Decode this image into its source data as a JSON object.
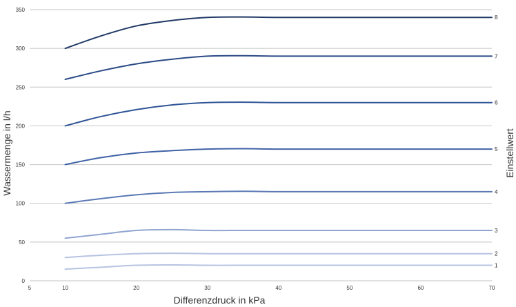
{
  "chart_data": {
    "type": "line",
    "title": "",
    "xlabel": "Differenzdruck in kPa",
    "ylabel": "Wassermenge in l/h",
    "y2label": "Einstellwert",
    "xlim": [
      5,
      70
    ],
    "ylim": [
      0,
      350
    ],
    "xticks": [
      5,
      10,
      20,
      30,
      40,
      50,
      60,
      70
    ],
    "yticks": [
      0,
      50,
      100,
      150,
      200,
      250,
      300,
      350
    ],
    "grid": "horizontal",
    "legend": "none",
    "x": [
      10,
      15,
      20,
      25,
      30,
      35,
      40,
      50,
      60,
      70
    ],
    "series": [
      {
        "name": "1",
        "color": "#b6c3e1",
        "values": [
          15,
          17.5,
          20,
          20.5,
          20,
          20,
          20,
          20,
          20,
          20
        ]
      },
      {
        "name": "2",
        "color": "#b6c3e1",
        "values": [
          30,
          33,
          35,
          35.5,
          35,
          35,
          35,
          35,
          35,
          35
        ]
      },
      {
        "name": "3",
        "color": "#8fa5d1",
        "values": [
          55,
          60,
          65,
          66,
          65,
          65,
          65,
          65,
          65,
          65
        ]
      },
      {
        "name": "4",
        "color": "#5b79b6",
        "values": [
          100,
          106,
          111,
          114,
          115,
          115.5,
          115,
          115,
          115,
          115
        ]
      },
      {
        "name": "5",
        "color": "#3f62a6",
        "values": [
          150,
          159,
          165,
          168,
          170,
          170.5,
          170,
          170,
          170,
          170
        ]
      },
      {
        "name": "6",
        "color": "#2f5497",
        "values": [
          200,
          212,
          221,
          227,
          230,
          230.5,
          230,
          230,
          230,
          230
        ]
      },
      {
        "name": "7",
        "color": "#2a4a86",
        "values": [
          260,
          271,
          280,
          286,
          290,
          290.5,
          290,
          290,
          290,
          290
        ]
      },
      {
        "name": "8",
        "color": "#1f3866",
        "values": [
          300,
          316,
          329,
          336,
          340,
          340.5,
          340,
          340,
          340,
          340
        ]
      }
    ]
  }
}
